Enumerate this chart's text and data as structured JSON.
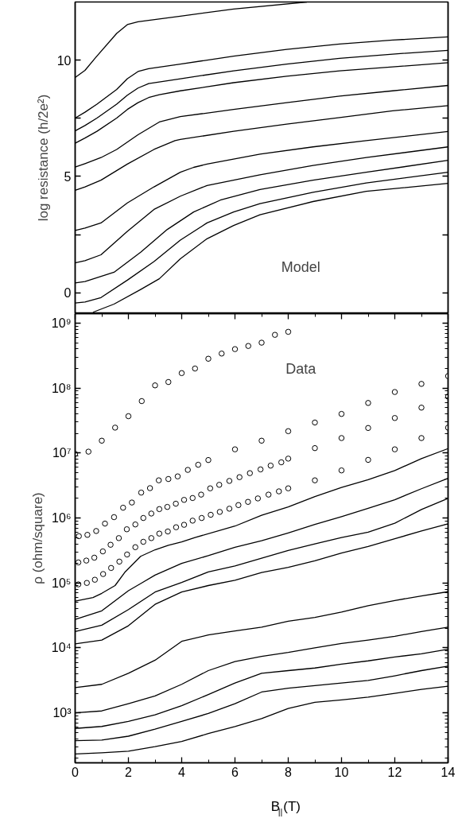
{
  "chart_data": [
    {
      "type": "line",
      "ylabel": "log resistance (h/2e²)",
      "annotations": [
        "Model"
      ],
      "xlim": [
        0,
        14
      ],
      "ylim": [
        -0.9,
        12.5
      ],
      "yticks": [
        0,
        {
          "value": 2.5,
          "label": null
        },
        5,
        {
          "value": 7.5,
          "label": null
        },
        10
      ],
      "tick_labels": "y",
      "grid": false,
      "line_style": "solid",
      "series": [
        {
          "color": "#000000",
          "x": [
            0,
            0.37,
            0.77,
            1.56,
            1.96,
            2.36,
            3.95,
            5.95,
            8.7
          ],
          "values": [
            9.25,
            9.56,
            10.11,
            11.15,
            11.53,
            11.65,
            11.89,
            12.2,
            12.5
          ]
        },
        {
          "color": "#000000",
          "x": [
            0,
            0.37,
            0.82,
            1.56,
            1.96,
            2.36,
            2.76,
            3.95,
            5.95,
            7.94,
            9.93,
            11.92,
            14
          ],
          "values": [
            7.51,
            7.76,
            8.11,
            8.74,
            9.2,
            9.51,
            9.63,
            9.83,
            10.17,
            10.46,
            10.69,
            10.86,
            11.0
          ]
        },
        {
          "color": "#000000",
          "x": [
            0,
            0.37,
            0.82,
            1.56,
            1.96,
            2.36,
            2.76,
            3.95,
            5.95,
            7.94,
            9.93,
            11.92,
            14
          ],
          "values": [
            6.96,
            7.19,
            7.51,
            8.11,
            8.49,
            8.8,
            8.99,
            9.2,
            9.54,
            9.83,
            10.08,
            10.26,
            10.42
          ]
        },
        {
          "color": "#000000",
          "x": [
            0,
            0.37,
            0.82,
            1.56,
            1.96,
            2.36,
            2.76,
            3.16,
            3.95,
            5.95,
            7.94,
            9.93,
            11.92,
            14
          ],
          "values": [
            6.43,
            6.65,
            6.94,
            7.51,
            7.88,
            8.17,
            8.39,
            8.51,
            8.68,
            9.03,
            9.31,
            9.54,
            9.71,
            9.89
          ]
        },
        {
          "color": "#000000",
          "x": [
            0,
            0.37,
            0.97,
            1.56,
            2.36,
            3.16,
            3.95,
            5.95,
            7.94,
            9.93,
            11.92,
            14
          ],
          "values": [
            5.4,
            5.55,
            5.81,
            6.16,
            6.79,
            7.34,
            7.57,
            7.88,
            8.17,
            8.45,
            8.68,
            8.91
          ]
        },
        {
          "color": "#000000",
          "x": [
            0,
            0.37,
            0.97,
            1.96,
            2.96,
            3.75,
            3.95,
            5.95,
            7.94,
            9.93,
            11.92,
            14
          ],
          "values": [
            4.4,
            4.55,
            4.84,
            5.53,
            6.16,
            6.54,
            6.59,
            6.94,
            7.25,
            7.53,
            7.82,
            8.04
          ]
        },
        {
          "color": "#000000",
          "x": [
            0,
            0.37,
            0.97,
            1.96,
            2.96,
            3.95,
            4.45,
            4.95,
            6.94,
            8.93,
            10.93,
            14
          ],
          "values": [
            2.68,
            2.78,
            3.0,
            3.86,
            4.55,
            5.18,
            5.39,
            5.53,
            5.96,
            6.27,
            6.54,
            6.93
          ]
        },
        {
          "color": "#000000",
          "x": [
            0,
            0.37,
            0.97,
            1.96,
            2.96,
            3.95,
            4.95,
            6.94,
            8.93,
            10.93,
            14
          ],
          "values": [
            1.28,
            1.38,
            1.63,
            2.64,
            3.58,
            4.15,
            4.61,
            5.07,
            5.47,
            5.81,
            6.27
          ]
        },
        {
          "color": "#000000",
          "x": [
            0,
            0.37,
            1.46,
            2.46,
            3.46,
            4.45,
            5.45,
            6.94,
            8.93,
            10.93,
            14
          ],
          "values": [
            0.42,
            0.48,
            0.88,
            1.74,
            2.72,
            3.47,
            3.98,
            4.44,
            4.84,
            5.18,
            5.69
          ]
        },
        {
          "color": "#000000",
          "x": [
            0,
            0.37,
            0.97,
            1.96,
            2.96,
            3.95,
            4.95,
            5.95,
            6.94,
            8.93,
            10.93,
            14
          ],
          "values": [
            -0.44,
            -0.4,
            -0.21,
            0.54,
            1.34,
            2.26,
            3.0,
            3.47,
            3.83,
            4.32,
            4.72,
            5.18
          ]
        },
        {
          "color": "#000000",
          "x": [
            0.67,
            1.46,
            2.46,
            3.16,
            3.95,
            4.95,
            5.95,
            6.94,
            8.93,
            10.93,
            14
          ],
          "values": [
            -0.84,
            -0.49,
            0.14,
            0.6,
            1.46,
            2.32,
            2.89,
            3.35,
            3.92,
            4.36,
            4.7
          ]
        }
      ]
    },
    {
      "type": "line",
      "xlabel": "B$_{||}$(T)",
      "ylabel": "ρ (ohm/square)",
      "annotations": [
        "Data"
      ],
      "log": "y",
      "xlim": [
        0,
        14
      ],
      "ylim": [
        170,
        1400000000
      ],
      "xticks": [
        0,
        2,
        4,
        6,
        8,
        10,
        12,
        14
      ],
      "yticks": [
        {
          "value": 1000,
          "label": "10³"
        },
        {
          "value": 10000,
          "label": "10⁴"
        },
        {
          "value": 100000,
          "label": "10⁵"
        },
        {
          "value": 1000000,
          "label": "10⁶"
        },
        {
          "value": 10000000,
          "label": "10⁷"
        },
        {
          "value": 100000000,
          "label": "10⁸"
        },
        {
          "value": 1000000000,
          "label": "10⁹"
        }
      ],
      "grid": false,
      "line_style": "solid",
      "series": [
        {
          "type": "scatter",
          "marker": "circle",
          "color": "#000000",
          "x": [
            0,
            0.5,
            1,
            1.5,
            2,
            2.5,
            3,
            3.5,
            4,
            4.5,
            5,
            5.5,
            6,
            6.5,
            7,
            7.5,
            8
          ],
          "values": [
            9700000,
            10500000,
            15500000,
            24600000,
            36900000,
            63000000,
            110000000,
            124000000,
            170000000,
            200000000,
            283000000,
            340000000,
            398000000,
            445000000,
            500000000,
            660000000,
            735000000
          ]
        },
        {
          "type": "scatter",
          "marker": "circle",
          "color": "#000000",
          "x": [
            0.14,
            0.46,
            0.79,
            1.12,
            1.46,
            1.8,
            2.13,
            2.48,
            2.81,
            3.14,
            3.5,
            3.85,
            4.23,
            4.62,
            5,
            6,
            7,
            8,
            9,
            10,
            11,
            12,
            13,
            14
          ],
          "values": [
            525000,
            550000,
            630000,
            820000,
            1030000,
            1440000,
            1730000,
            2460000,
            2880000,
            3800000,
            3980000,
            4370000,
            5500000,
            6600000,
            7800000,
            11400000,
            15500000,
            21700000,
            29500000,
            40000000,
            59000000,
            87000000,
            116000000,
            153000000
          ]
        },
        {
          "type": "scatter",
          "marker": "circle",
          "color": "#000000",
          "x": [
            0.12,
            0.42,
            0.72,
            1.04,
            1.33,
            1.64,
            1.94,
            2.26,
            2.56,
            2.86,
            3.16,
            3.46,
            3.78,
            4.09,
            4.41,
            4.73,
            5.07,
            5.41,
            5.79,
            6.17,
            6.56,
            6.96,
            7.34,
            7.74,
            8,
            9,
            10,
            11,
            12,
            13,
            14
          ],
          "values": [
            207000,
            221000,
            245000,
            306000,
            387000,
            490000,
            670000,
            795000,
            1000000,
            1170000,
            1370000,
            1480000,
            1660000,
            1900000,
            2030000,
            2290000,
            2860000,
            3240000,
            3720000,
            4250000,
            4900000,
            5600000,
            6400000,
            7200000,
            8200000,
            11900000,
            17000000,
            24300000,
            34600000,
            50000000,
            74000000
          ]
        },
        {
          "type": "scatter",
          "marker": "circle",
          "color": "#000000",
          "x": [
            0.12,
            0.44,
            0.74,
            1.05,
            1.35,
            1.66,
            1.95,
            2.26,
            2.56,
            2.86,
            3.16,
            3.48,
            3.79,
            4.09,
            4.41,
            4.75,
            5.09,
            5.43,
            5.79,
            6.13,
            6.49,
            6.86,
            7.26,
            7.65,
            8,
            9,
            10,
            11,
            12,
            13,
            14
          ],
          "values": [
            95000,
            100000,
            112000,
            137000,
            170000,
            213000,
            274000,
            355000,
            430000,
            490000,
            575000,
            620000,
            720000,
            785000,
            910000,
            1000000,
            1120000,
            1240000,
            1390000,
            1580000,
            1770000,
            2000000,
            2290000,
            2570000,
            2860000,
            3800000,
            5400000,
            7850000,
            11400000,
            17000000,
            24600000
          ]
        },
        {
          "color": "#000000",
          "x": [
            0,
            0.67,
            1,
            1.5,
            1.86,
            2.46,
            3,
            3.5,
            4,
            4.5,
            6,
            7,
            8,
            9,
            10,
            11,
            12,
            13,
            14
          ],
          "values": [
            52500,
            59600,
            69200,
            91200,
            145000,
            257000,
            324000,
            380000,
            427000,
            501000,
            750000,
            1100000,
            1480000,
            2140000,
            2950000,
            3890000,
            5370000,
            8220000,
            11700000
          ]
        },
        {
          "color": "#000000",
          "x": [
            0,
            1,
            2,
            2.5,
            3,
            4,
            5,
            6,
            7,
            8,
            9,
            10,
            11,
            12,
            13,
            14
          ],
          "values": [
            27500,
            37200,
            75900,
            100000,
            132000,
            200000,
            263000,
            355000,
            447000,
            589000,
            794000,
            1050000,
            1410000,
            1910000,
            2820000,
            4070000
          ]
        },
        {
          "color": "#000000",
          "x": [
            0,
            1,
            2,
            3,
            4,
            5,
            6,
            7,
            8,
            9,
            10,
            11,
            12,
            13,
            14
          ],
          "values": [
            17800,
            22400,
            38900,
            72400,
            102000,
            148000,
            182000,
            240000,
            316000,
            398000,
            501000,
            603000,
            832000,
            1350000,
            2000000
          ]
        },
        {
          "color": "#000000",
          "x": [
            0,
            1,
            2,
            3,
            4,
            5,
            6,
            7,
            8,
            9,
            10,
            11,
            12,
            13,
            14
          ],
          "values": [
            11500,
            13200,
            21900,
            46800,
            72400,
            91200,
            110000,
            145000,
            174000,
            219000,
            288000,
            363000,
            479000,
            631000,
            813000
          ]
        },
        {
          "color": "#000000",
          "x": [
            0,
            1,
            2,
            3,
            4,
            5,
            6,
            7,
            8,
            9,
            10,
            11,
            12,
            13,
            14
          ],
          "values": [
            2450,
            2750,
            4070,
            6460,
            12600,
            15800,
            18200,
            20900,
            25700,
            29500,
            35500,
            44700,
            53700,
            63100,
            73300
          ]
        },
        {
          "color": "#000000",
          "x": [
            0,
            1,
            2,
            3,
            4,
            5,
            6,
            7,
            8,
            9,
            10,
            11,
            12,
            13,
            14
          ],
          "values": [
            1000,
            1070,
            1380,
            1820,
            2750,
            4470,
            6170,
            7410,
            8510,
            10000,
            11700,
            13200,
            15100,
            17800,
            20900
          ]
        },
        {
          "color": "#000000",
          "x": [
            0,
            1,
            2,
            3,
            4,
            5,
            6,
            7,
            8,
            9,
            10,
            11,
            12,
            13,
            14
          ],
          "values": [
            575,
            617,
            741,
            933,
            1290,
            1910,
            2880,
            4070,
            4470,
            4900,
            5620,
            6310,
            7240,
            8130,
            9550
          ]
        },
        {
          "color": "#000000",
          "x": [
            0,
            1,
            2,
            3,
            4,
            5,
            6,
            7,
            8,
            9,
            10,
            11,
            12,
            13,
            14
          ],
          "values": [
            372,
            380,
            437,
            562,
            741,
            977,
            1380,
            2090,
            2400,
            2630,
            2880,
            3160,
            3720,
            4470,
            5250
          ]
        },
        {
          "color": "#000000",
          "x": [
            0,
            1,
            2,
            3,
            4,
            5,
            6,
            7,
            8,
            9,
            10,
            11,
            12,
            13,
            14
          ],
          "values": [
            232,
            243,
            257,
            302,
            363,
            479,
            617,
            813,
            1170,
            1450,
            1580,
            1740,
            2000,
            2290,
            2570
          ]
        }
      ]
    }
  ]
}
